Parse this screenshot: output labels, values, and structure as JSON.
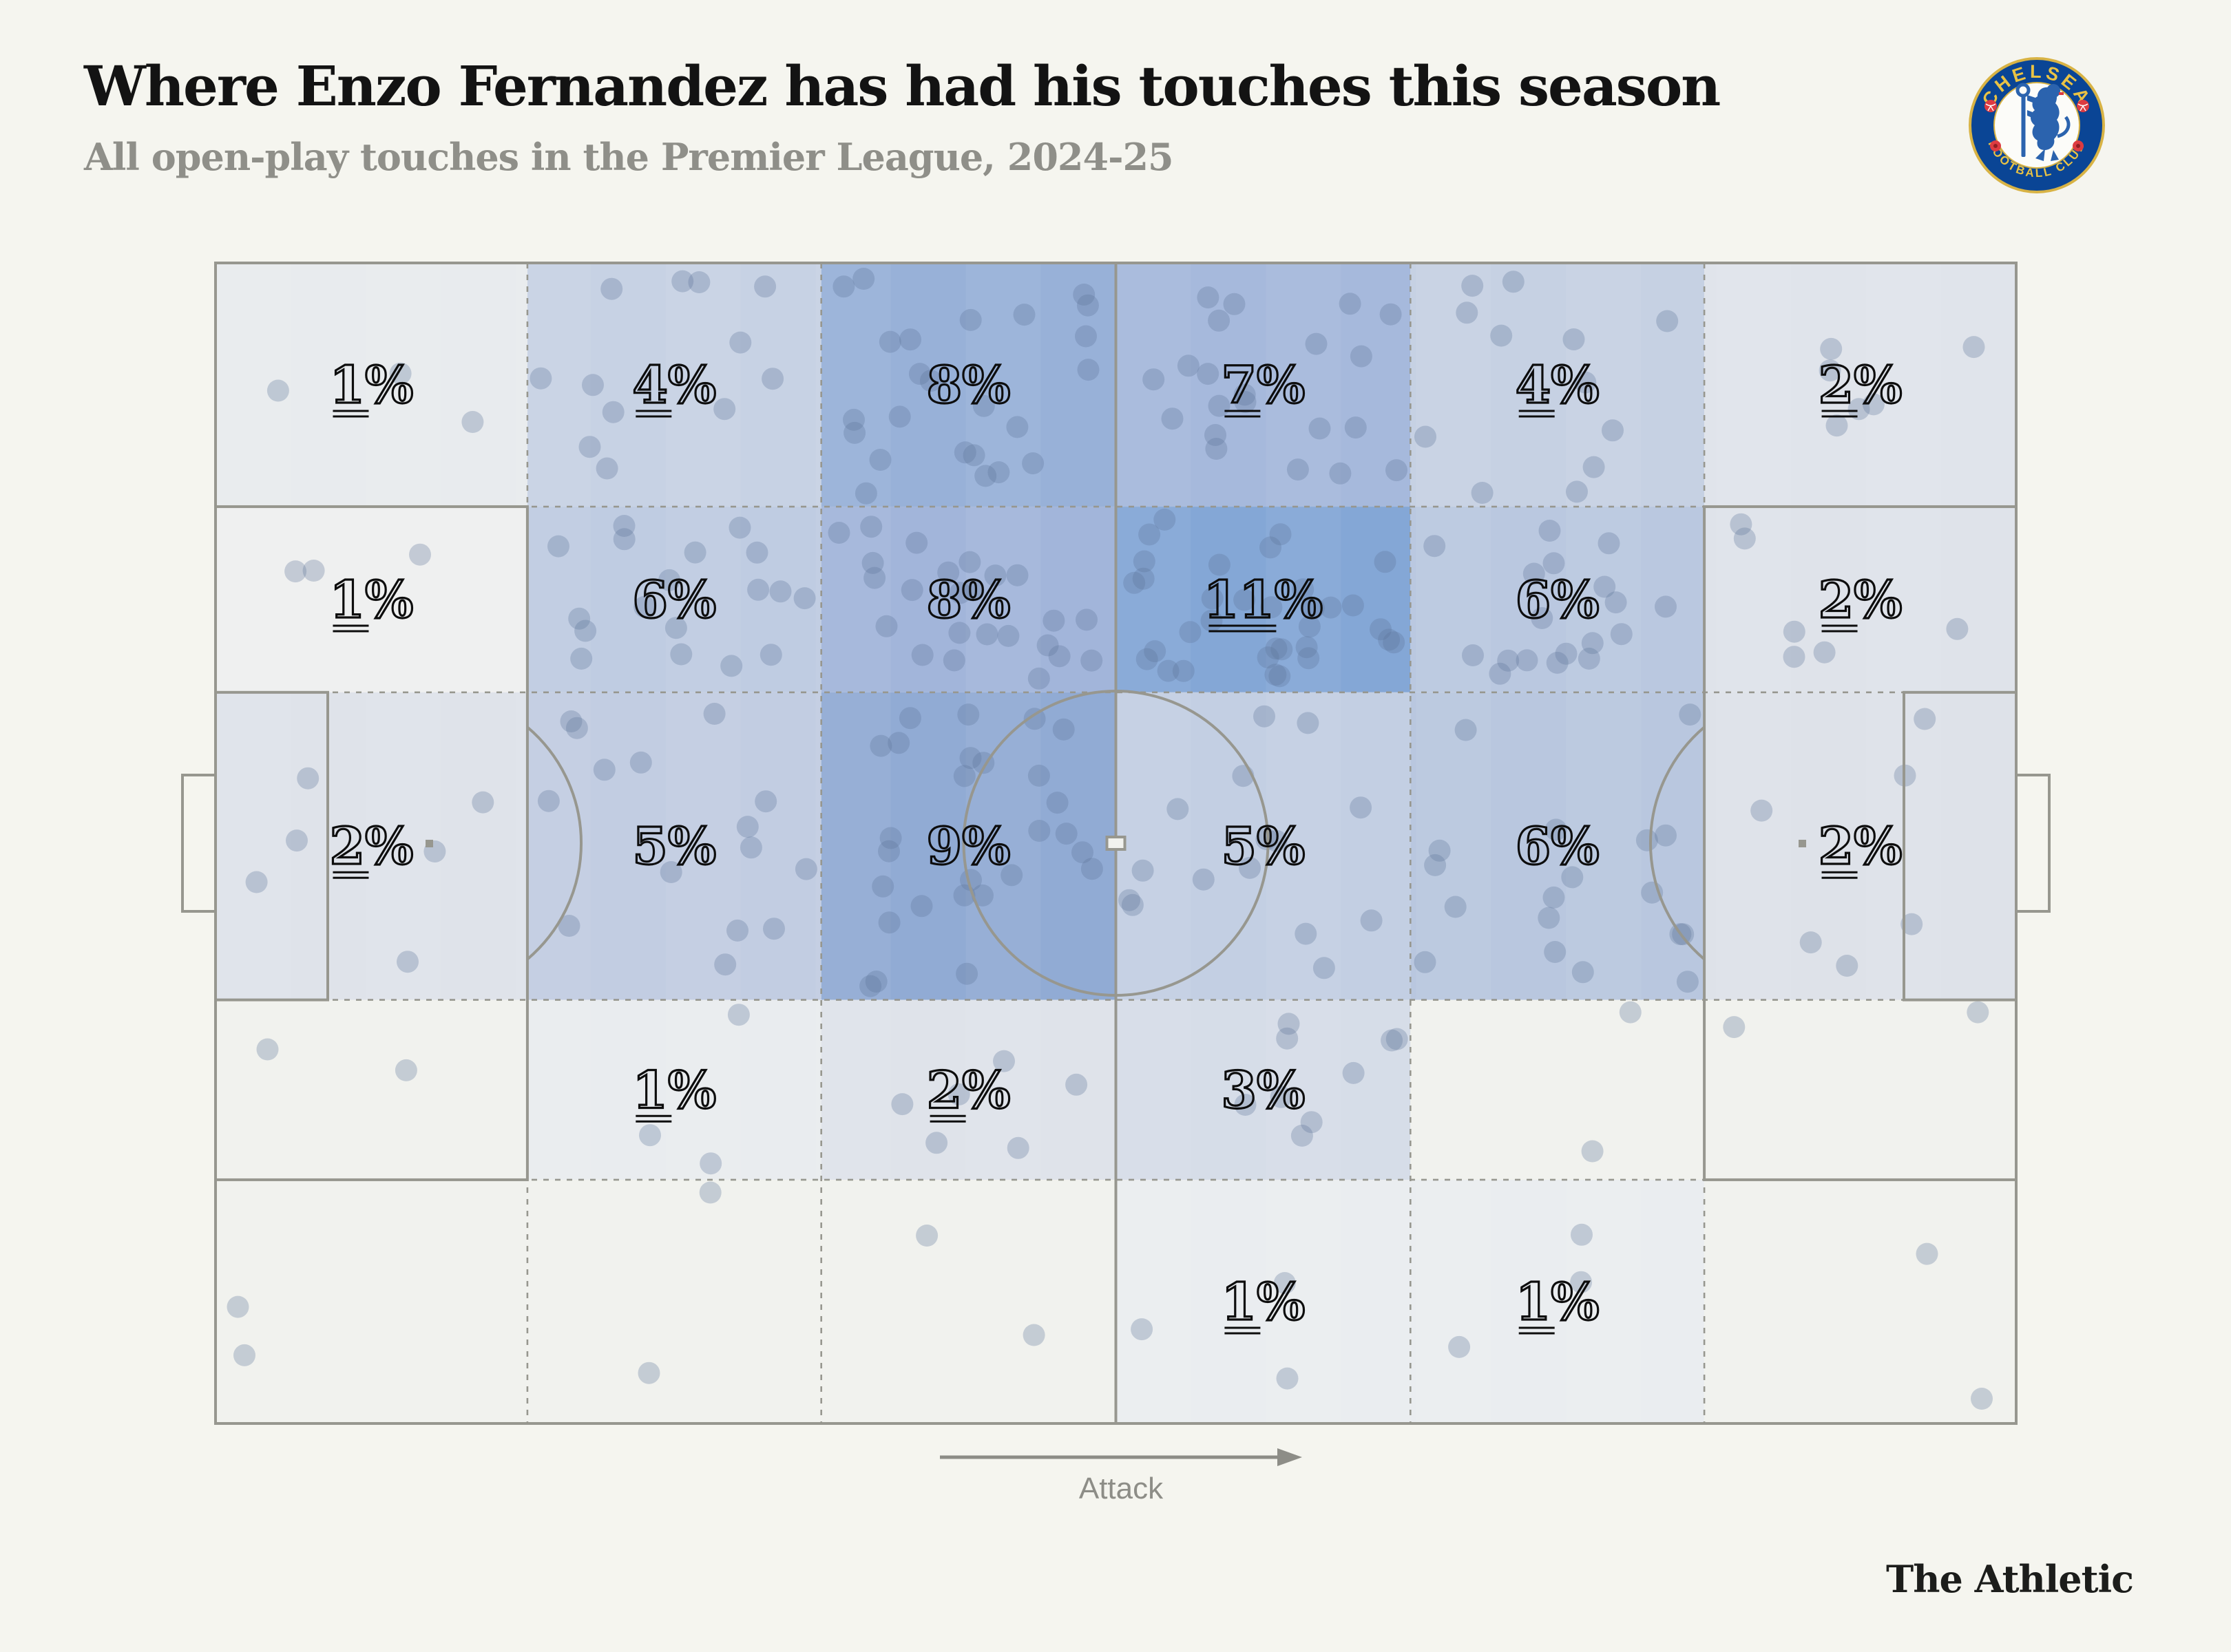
{
  "header": {
    "title": "Where Enzo Fernandez has had his touches this season",
    "subtitle": "All open-play touches in the Premier League, 2024-25"
  },
  "crest": {
    "club_name": "CHELSEA",
    "club_bottom_text": "FOOTBALL CLUB",
    "ring_color": "#0a4595",
    "gold_color": "#d8b345",
    "text_gold_color": "#e9c244",
    "lion_color": "#2b63ae",
    "red_color": "#dd3b41"
  },
  "attack_label": "Attack",
  "brand": "The Athletic",
  "chart_data": {
    "type": "heatmap",
    "title": "Where Enzo Fernandez has had his touches this season",
    "subtitle": "All open-play touches in the Premier League, 2024-25",
    "description": "Football pitch split into a 6x5 zone grid; each zone shows the share of Enzo Fernandez's open-play touches, with individual touches drawn as faded dots. Attack direction is left to right.",
    "columns": 6,
    "rows": 5,
    "col_boundaries_pct": [
      0,
      17.32,
      33.64,
      50,
      66.36,
      82.68,
      100
    ],
    "row_boundaries_pct": [
      0,
      21,
      37,
      63.5,
      79,
      100
    ],
    "cells": [
      [
        {
          "value": 1,
          "label": "1%",
          "color": "#e8ebee"
        },
        {
          "value": 4,
          "label": "4%",
          "color": "#c7d2e4"
        },
        {
          "value": 8,
          "label": "8%",
          "color": "#98b1d8"
        },
        {
          "value": 7,
          "label": "7%",
          "color": "#a6b9dc"
        },
        {
          "value": 4,
          "label": "4%",
          "color": "#c6d1e3"
        },
        {
          "value": 2,
          "label": "2%",
          "color": "#e0e4eb"
        }
      ],
      [
        {
          "value": 1,
          "label": "1%",
          "color": "#eff0f0"
        },
        {
          "value": 6,
          "label": "6%",
          "color": "#bfcce2"
        },
        {
          "value": 8,
          "label": "8%",
          "color": "#a2b5da"
        },
        {
          "value": 11,
          "label": "11%",
          "color": "#84a7d6"
        },
        {
          "value": 6,
          "label": "6%",
          "color": "#bac8e0"
        },
        {
          "value": 2,
          "label": "2%",
          "color": "#dfe3ea"
        }
      ],
      [
        {
          "value": 2,
          "label": "2%",
          "color": "#dfe3ea"
        },
        {
          "value": 5,
          "label": "5%",
          "color": "#c2cde2"
        },
        {
          "value": 9,
          "label": "9%",
          "color": "#91abd4"
        },
        {
          "value": 5,
          "label": "5%",
          "color": "#c3cfe3"
        },
        {
          "value": 6,
          "label": "6%",
          "color": "#b9c7df"
        },
        {
          "value": 2,
          "label": "2%",
          "color": "#dee2e9"
        }
      ],
      [
        {
          "value": null,
          "label": "",
          "color": "#f1f2ee"
        },
        {
          "value": 1,
          "label": "1%",
          "color": "#e9ecef"
        },
        {
          "value": 2,
          "label": "2%",
          "color": "#dfe3ea"
        },
        {
          "value": 3,
          "label": "3%",
          "color": "#d6dde8"
        },
        {
          "value": null,
          "label": "",
          "color": "#f1f2ee"
        },
        {
          "value": null,
          "label": "",
          "color": "#f1f2ee"
        }
      ],
      [
        {
          "value": null,
          "label": "",
          "color": "#f1f2ee"
        },
        {
          "value": null,
          "label": "",
          "color": "#f1f2ee"
        },
        {
          "value": null,
          "label": "",
          "color": "#f1f2ee"
        },
        {
          "value": 1,
          "label": "1%",
          "color": "#eaedf0"
        },
        {
          "value": 1,
          "label": "1%",
          "color": "#eaedf0"
        },
        {
          "value": null,
          "label": "",
          "color": "#f1f2ee"
        }
      ]
    ],
    "annotation": "Attack",
    "legend": "none",
    "style": {
      "pitch_line_color": "#97978f",
      "dot_color": "rgba(93,115,152,0.30)",
      "label_color": "#0d0d0d",
      "dots_per_percent": 3,
      "dot_radius": 16
    }
  }
}
